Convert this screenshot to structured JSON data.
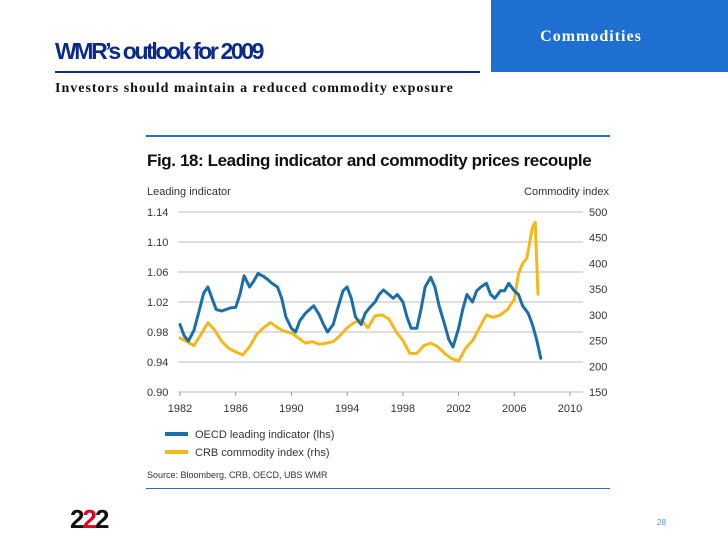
{
  "slide": {
    "tab_label": "Commodities",
    "title": "WMR’s outlook for 2009",
    "subtitle": "Investors should maintain a reduced commodity exposure",
    "logo_a": "2",
    "logo_b": "2",
    "logo_c": "2",
    "page_number": "28"
  },
  "colors": {
    "accent": "#1f6fd1",
    "oecd": "#1a6fa8",
    "crb": "#f4b81c",
    "title_blue": "#0b2a8c"
  },
  "chart_data": {
    "type": "line",
    "title": "Fig. 18: Leading indicator and commodity prices recouple",
    "ylabel_left": "Leading indicator",
    "ylabel_right": "Commodity index",
    "source": "Source: Bloomberg, CRB, OECD, UBS WMR",
    "xlim": [
      1982,
      2010
    ],
    "ylim_left": [
      0.9,
      1.14
    ],
    "ylim_right": [
      150,
      500
    ],
    "x_ticks": [
      "1982",
      "1986",
      "1990",
      "1994",
      "1998",
      "2002",
      "2006",
      "2010"
    ],
    "y_ticks_left": [
      "1.14",
      "1.10",
      "1.06",
      "1.02",
      "0.98",
      "0.94",
      "0.90"
    ],
    "y_ticks_right": [
      "500",
      "450",
      "400",
      "350",
      "300",
      "250",
      "200",
      "150"
    ],
    "grid": true,
    "legend_position": "bottom-left",
    "series": [
      {
        "name": "OECD leading indicator (lhs)",
        "axis": "left",
        "color": "#1a6fa8",
        "x": [
          1982.0,
          1982.3,
          1982.6,
          1983.0,
          1983.4,
          1983.7,
          1984.0,
          1984.3,
          1984.6,
          1985.0,
          1985.3,
          1985.6,
          1986.0,
          1986.3,
          1986.6,
          1987.0,
          1987.3,
          1987.6,
          1988.0,
          1988.3,
          1988.6,
          1989.0,
          1989.3,
          1989.6,
          1990.0,
          1990.3,
          1990.6,
          1991.0,
          1991.3,
          1991.6,
          1992.0,
          1992.3,
          1992.6,
          1993.0,
          1993.3,
          1993.7,
          1994.0,
          1994.3,
          1994.6,
          1995.0,
          1995.3,
          1995.6,
          1996.0,
          1996.3,
          1996.6,
          1997.0,
          1997.3,
          1997.6,
          1998.0,
          1998.3,
          1998.6,
          1999.0,
          1999.3,
          1999.6,
          2000.0,
          2000.3,
          2000.6,
          2001.0,
          2001.3,
          2001.6,
          2002.0,
          2002.3,
          2002.6,
          2003.0,
          2003.3,
          2003.6,
          2004.0,
          2004.3,
          2004.6,
          2005.0,
          2005.3,
          2005.6,
          2006.0,
          2006.3,
          2006.6,
          2007.0,
          2007.3,
          2007.6,
          2007.9
        ],
        "values": [
          0.99,
          0.975,
          0.968,
          0.982,
          1.01,
          1.032,
          1.04,
          1.025,
          1.01,
          1.008,
          1.01,
          1.012,
          1.013,
          1.03,
          1.055,
          1.04,
          1.048,
          1.058,
          1.054,
          1.05,
          1.045,
          1.04,
          1.025,
          1.0,
          0.985,
          0.98,
          0.995,
          1.005,
          1.01,
          1.015,
          1.003,
          0.99,
          0.98,
          0.99,
          1.01,
          1.035,
          1.04,
          1.025,
          1.0,
          0.99,
          1.005,
          1.012,
          1.02,
          1.03,
          1.036,
          1.03,
          1.025,
          1.03,
          1.02,
          1.0,
          0.985,
          0.985,
          1.01,
          1.04,
          1.053,
          1.04,
          1.015,
          0.99,
          0.97,
          0.96,
          0.985,
          1.01,
          1.03,
          1.02,
          1.035,
          1.04,
          1.045,
          1.03,
          1.025,
          1.035,
          1.035,
          1.045,
          1.035,
          1.03,
          1.015,
          1.005,
          0.99,
          0.97,
          0.945
        ]
      },
      {
        "name": "CRB commodity index (rhs)",
        "axis": "right",
        "color": "#f4b81c",
        "x": [
          1982.0,
          1982.5,
          1983.0,
          1983.5,
          1984.0,
          1984.5,
          1985.0,
          1985.5,
          1986.0,
          1986.5,
          1987.0,
          1987.5,
          1988.0,
          1988.5,
          1989.0,
          1989.5,
          1990.0,
          1990.5,
          1991.0,
          1991.5,
          1992.0,
          1992.5,
          1993.0,
          1993.5,
          1994.0,
          1994.5,
          1995.0,
          1995.5,
          1996.0,
          1996.5,
          1997.0,
          1997.5,
          1998.0,
          1998.5,
          1999.0,
          1999.5,
          2000.0,
          2000.5,
          2001.0,
          2001.5,
          2002.0,
          2002.5,
          2003.0,
          2003.5,
          2004.0,
          2004.5,
          2005.0,
          2005.5,
          2006.0,
          2006.3,
          2006.6,
          2006.9,
          2007.1,
          2007.3,
          2007.5,
          2007.7
        ],
        "values": [
          255,
          248,
          240,
          262,
          285,
          270,
          248,
          235,
          228,
          222,
          238,
          262,
          275,
          285,
          275,
          268,
          265,
          255,
          245,
          248,
          243,
          245,
          248,
          260,
          275,
          285,
          290,
          275,
          298,
          300,
          292,
          268,
          250,
          225,
          225,
          240,
          245,
          238,
          225,
          215,
          210,
          235,
          250,
          275,
          300,
          295,
          300,
          310,
          330,
          380,
          400,
          410,
          440,
          470,
          480,
          340
        ]
      }
    ]
  }
}
